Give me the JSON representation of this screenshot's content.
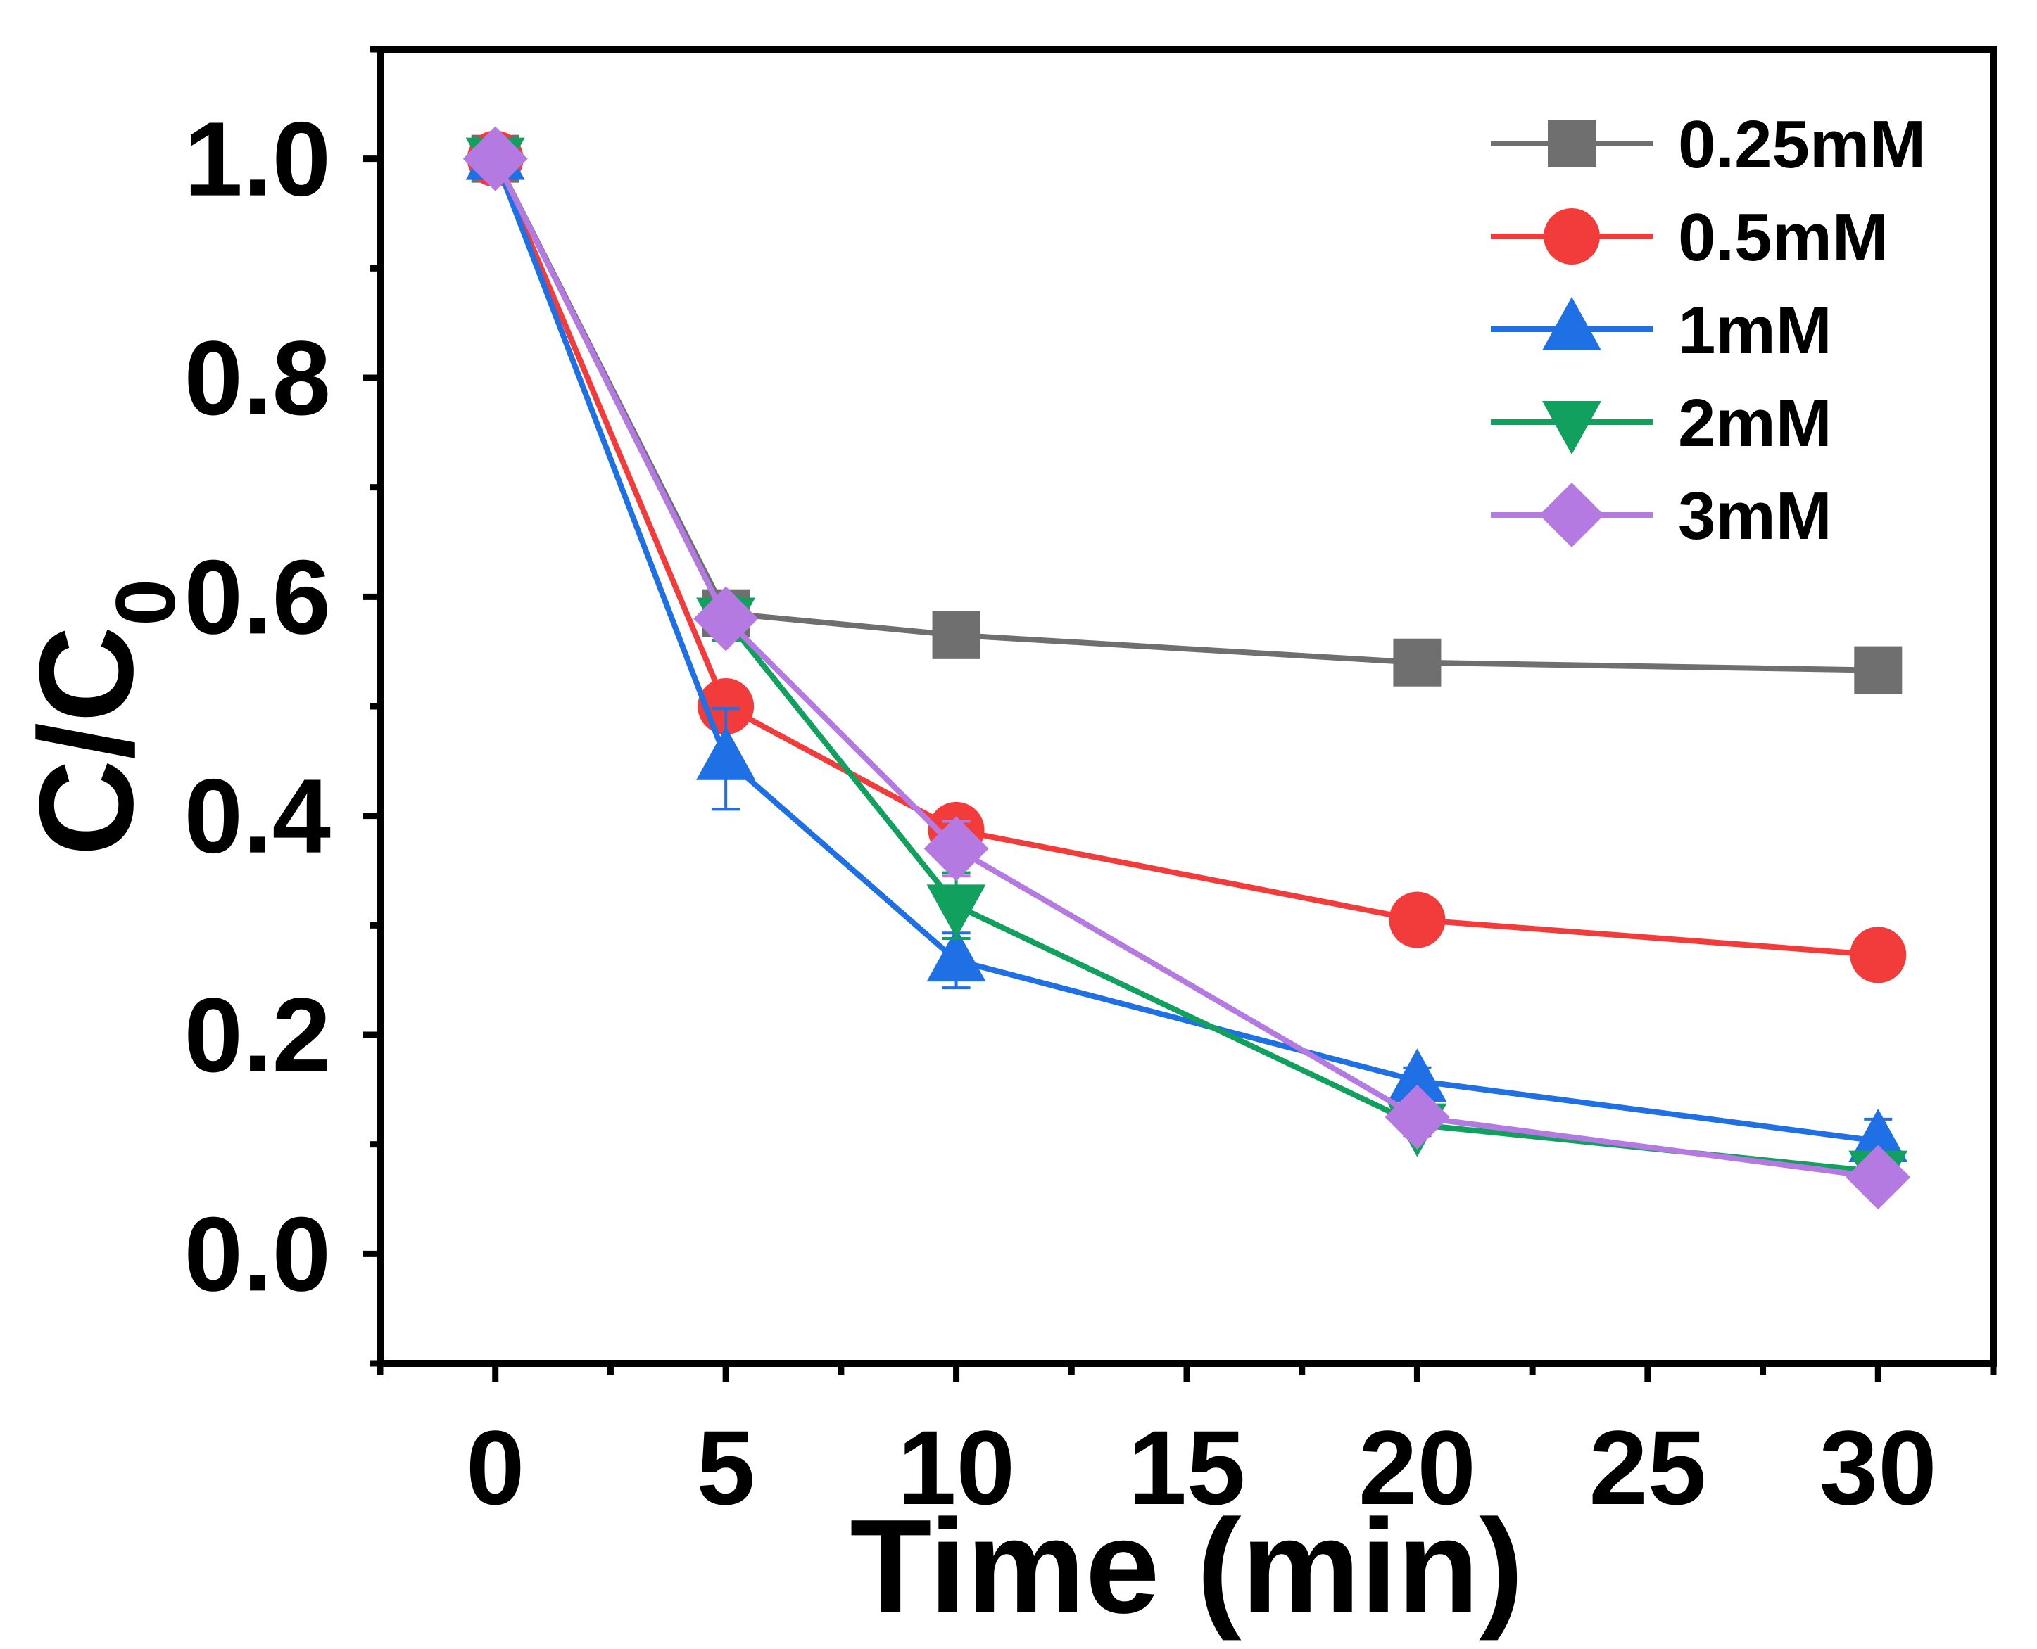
{
  "chart_data": {
    "type": "line",
    "title": "",
    "xlabel": "Time (min)",
    "ylabel_main": "C/C",
    "ylabel_sub": "0",
    "xlim": [
      -2.5,
      32.5
    ],
    "ylim": [
      -0.1,
      1.1
    ],
    "x_ticks": [
      0,
      5,
      10,
      15,
      20,
      25,
      30
    ],
    "x_tick_labels": [
      "0",
      "5",
      "10",
      "15",
      "20",
      "25",
      "30"
    ],
    "y_ticks": [
      0.0,
      0.2,
      0.4,
      0.6,
      0.8,
      1.0
    ],
    "y_tick_labels": [
      "0.0",
      "0.2",
      "0.4",
      "0.6",
      "0.8",
      "1.0"
    ],
    "legend_position": "top-right",
    "x": [
      0,
      5,
      10,
      20,
      30
    ],
    "series": [
      {
        "name": "0.25mM",
        "color": "#6f6f6f",
        "marker": "square",
        "values": [
          1.0,
          0.585,
          0.565,
          0.54,
          0.533
        ],
        "errors": [
          0.005,
          0.01,
          0.006,
          0.006,
          0.006
        ]
      },
      {
        "name": "0.5mM",
        "color": "#f23c3c",
        "marker": "circle",
        "values": [
          1.0,
          0.5,
          0.387,
          0.305,
          0.273
        ],
        "errors": [
          0.005,
          0.005,
          0.012,
          0.006,
          0.006
        ]
      },
      {
        "name": "1mM",
        "color": "#1f6fe5",
        "marker": "triangle-up",
        "values": [
          1.0,
          0.452,
          0.268,
          0.158,
          0.103
        ],
        "errors": [
          0.005,
          0.046,
          0.025,
          0.012,
          0.02
        ]
      },
      {
        "name": "2mM",
        "color": "#12a05e",
        "marker": "triangle-down",
        "values": [
          1.0,
          0.58,
          0.318,
          0.118,
          0.075
        ],
        "errors": [
          0.005,
          0.02,
          0.03,
          0.01,
          0.012
        ]
      },
      {
        "name": "3mM",
        "color": "#b57ae2",
        "marker": "diamond",
        "values": [
          1.0,
          0.58,
          0.37,
          0.125,
          0.07
        ],
        "errors": [
          0.005,
          0.01,
          0.025,
          0.01,
          0.01
        ]
      }
    ]
  }
}
